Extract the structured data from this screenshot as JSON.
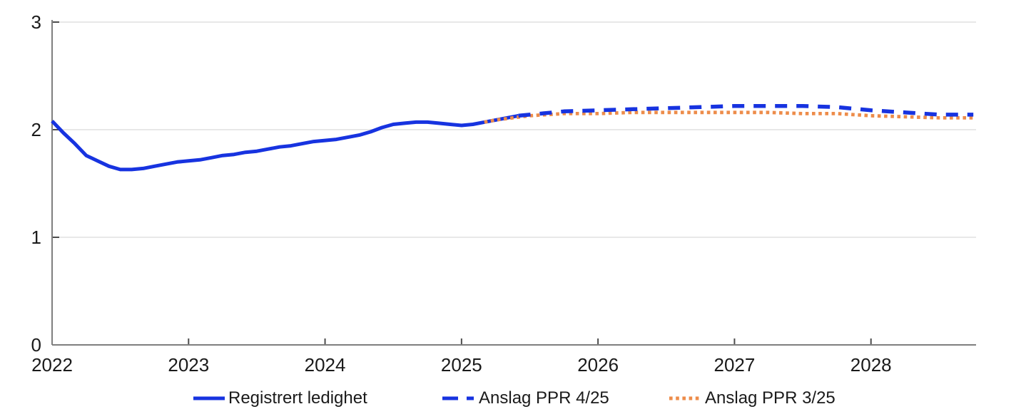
{
  "colors": {
    "background": "#FFFFFF",
    "axis": "#7F7F7F",
    "tick": "#4D4D4D",
    "grid": "#E0E0E0",
    "text": "#1A1A1A",
    "blue": "#1733E0",
    "orange": "#ED8C4A"
  },
  "legend": {
    "items": [
      {
        "label": "Registrert ledighet",
        "series": "Registrert ledighet"
      },
      {
        "label": "Anslag PPR 4/25",
        "series": "Anslag PPR 4/25"
      },
      {
        "label": "Anslag PPR 3/25",
        "series": "Anslag PPR 3/25"
      }
    ]
  },
  "chart_data": {
    "type": "line",
    "title": "",
    "xlabel": "",
    "ylabel": "",
    "grid": {
      "horizontal": true,
      "vertical": false
    },
    "legend_position": "bottom",
    "x_axis": {
      "min": 2022,
      "max": 2028.77,
      "tick_values": [
        2022,
        2023,
        2024,
        2025,
        2026,
        2027,
        2028
      ],
      "tick_labels": [
        "2022",
        "2023",
        "2024",
        "2025",
        "2026",
        "2027",
        "2028"
      ]
    },
    "y_axis": {
      "min": 0,
      "max": 3,
      "tick_values": [
        0,
        1,
        2,
        3
      ],
      "tick_labels": [
        "0",
        "1",
        "2",
        "3"
      ]
    },
    "series": [
      {
        "name": "Registrert ledighet",
        "line_style": "solid",
        "color": "#1733E0",
        "points": [
          [
            2022.0,
            2.08
          ],
          [
            2022.083,
            1.97
          ],
          [
            2022.167,
            1.87
          ],
          [
            2022.25,
            1.76
          ],
          [
            2022.333,
            1.71
          ],
          [
            2022.417,
            1.66
          ],
          [
            2022.5,
            1.63
          ],
          [
            2022.583,
            1.63
          ],
          [
            2022.667,
            1.64
          ],
          [
            2022.75,
            1.66
          ],
          [
            2022.833,
            1.68
          ],
          [
            2022.917,
            1.7
          ],
          [
            2023.0,
            1.71
          ],
          [
            2023.083,
            1.72
          ],
          [
            2023.167,
            1.74
          ],
          [
            2023.25,
            1.76
          ],
          [
            2023.333,
            1.77
          ],
          [
            2023.417,
            1.79
          ],
          [
            2023.5,
            1.8
          ],
          [
            2023.583,
            1.82
          ],
          [
            2023.667,
            1.84
          ],
          [
            2023.75,
            1.85
          ],
          [
            2023.833,
            1.87
          ],
          [
            2023.917,
            1.89
          ],
          [
            2024.0,
            1.9
          ],
          [
            2024.083,
            1.91
          ],
          [
            2024.167,
            1.93
          ],
          [
            2024.25,
            1.95
          ],
          [
            2024.333,
            1.98
          ],
          [
            2024.417,
            2.02
          ],
          [
            2024.5,
            2.05
          ],
          [
            2024.583,
            2.06
          ],
          [
            2024.667,
            2.07
          ],
          [
            2024.75,
            2.07
          ],
          [
            2024.833,
            2.06
          ],
          [
            2024.917,
            2.05
          ],
          [
            2025.0,
            2.04
          ],
          [
            2025.083,
            2.05
          ],
          [
            2025.167,
            2.07
          ],
          [
            2025.25,
            2.09
          ],
          [
            2025.333,
            2.11
          ],
          [
            2025.417,
            2.13
          ]
        ]
      },
      {
        "name": "Anslag PPR 3/25",
        "line_style": "dotted",
        "color": "#ED8C4A",
        "points": [
          [
            2025.167,
            2.07
          ],
          [
            2025.25,
            2.09
          ],
          [
            2025.5,
            2.13
          ],
          [
            2025.75,
            2.15
          ],
          [
            2026.0,
            2.15
          ],
          [
            2026.25,
            2.16
          ],
          [
            2026.5,
            2.16
          ],
          [
            2026.75,
            2.16
          ],
          [
            2027.0,
            2.16
          ],
          [
            2027.25,
            2.16
          ],
          [
            2027.5,
            2.15
          ],
          [
            2027.75,
            2.15
          ],
          [
            2028.0,
            2.13
          ],
          [
            2028.25,
            2.12
          ],
          [
            2028.5,
            2.11
          ],
          [
            2028.75,
            2.11
          ]
        ]
      },
      {
        "name": "Anslag PPR 4/25",
        "line_style": "dashed",
        "color": "#1733E0",
        "points": [
          [
            2025.417,
            2.13
          ],
          [
            2025.5,
            2.14
          ],
          [
            2025.75,
            2.17
          ],
          [
            2026.0,
            2.18
          ],
          [
            2026.25,
            2.19
          ],
          [
            2026.5,
            2.2
          ],
          [
            2026.75,
            2.21
          ],
          [
            2027.0,
            2.22
          ],
          [
            2027.25,
            2.22
          ],
          [
            2027.5,
            2.22
          ],
          [
            2027.75,
            2.21
          ],
          [
            2028.0,
            2.18
          ],
          [
            2028.25,
            2.16
          ],
          [
            2028.5,
            2.14
          ],
          [
            2028.75,
            2.14
          ]
        ]
      }
    ]
  }
}
